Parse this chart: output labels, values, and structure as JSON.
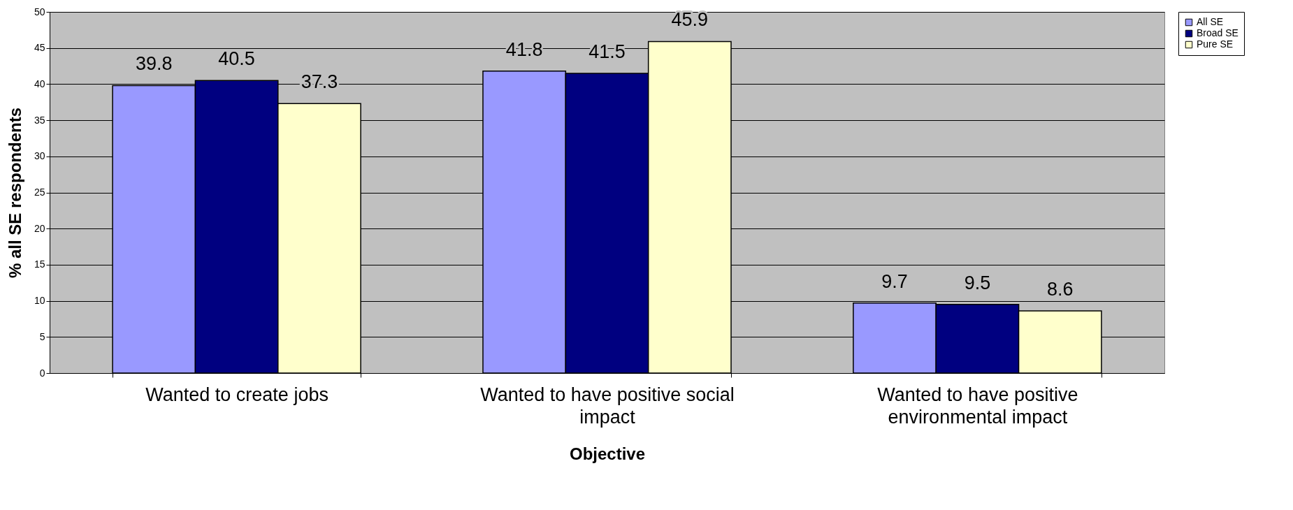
{
  "chart_data": {
    "type": "bar",
    "xlabel": "Objective",
    "ylabel": "% all SE respondents",
    "categories": [
      "Wanted to create jobs",
      "Wanted to have positive social impact",
      "Wanted to have positive environmental impact"
    ],
    "series": [
      {
        "name": "All SE",
        "color": "#9999ff",
        "values": [
          39.8,
          41.8,
          9.7
        ]
      },
      {
        "name": "Broad SE",
        "color": "#000080",
        "values": [
          40.5,
          41.5,
          9.5
        ]
      },
      {
        "name": "Pure SE",
        "color": "#ffffcc",
        "values": [
          37.3,
          45.9,
          8.6
        ]
      }
    ],
    "ylim": [
      0,
      50
    ],
    "yticks": [
      0,
      5,
      10,
      15,
      20,
      25,
      30,
      35,
      40,
      45,
      50
    ],
    "grid": "y",
    "legend": "right",
    "data_labels": true
  }
}
